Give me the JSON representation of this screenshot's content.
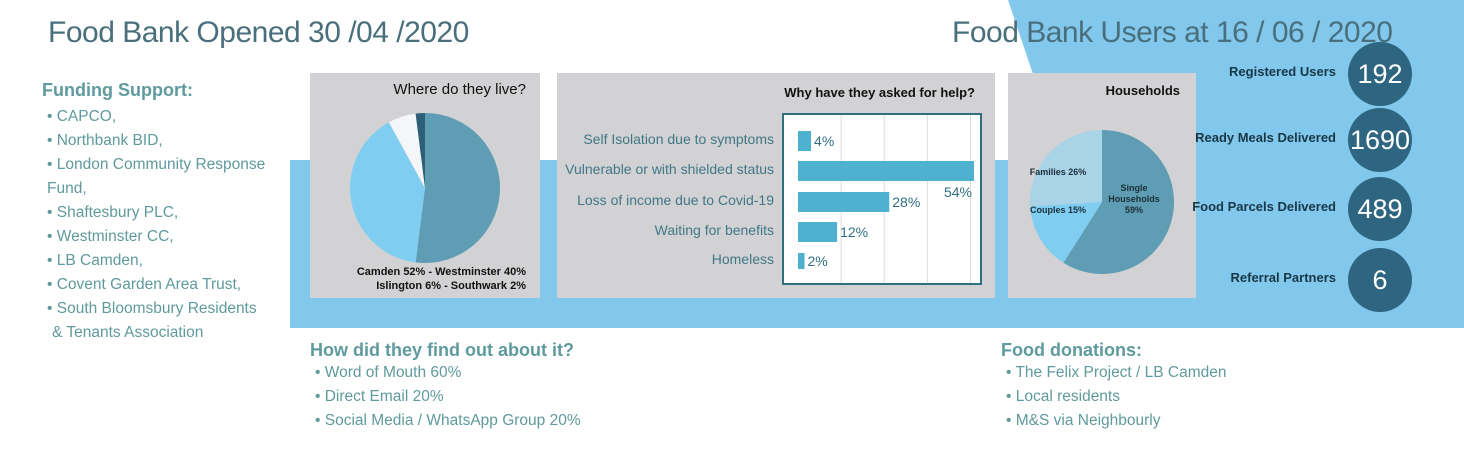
{
  "header": {
    "left_title": "Food Bank Opened 30 /04 /2020",
    "right_title": "Food Bank Users at 16 / 06 / 2020"
  },
  "funding": {
    "heading": "Funding Support:",
    "items": [
      "CAPCO,",
      "Northbank BID,",
      "London Community Response Fund,",
      "Shaftesbury PLC,",
      "Westminster CC,",
      "LB Camden,",
      "Covent Garden Area Trust,",
      "South Bloomsbury Residents"
    ],
    "continuation": "& Tenants Association"
  },
  "find_out": {
    "heading": "How did they find out about it?",
    "items": [
      "Word of Mouth 60%",
      "Direct Email 20%",
      "Social Media / WhatsApp Group 20%"
    ]
  },
  "donations": {
    "heading": "Food donations:",
    "items": [
      "The Felix Project / LB Camden",
      "Local residents",
      "M&S via Neighbourly"
    ]
  },
  "stats": [
    {
      "label": "Registered Users",
      "value": "192"
    },
    {
      "label": "Ready Meals Delivered",
      "value": "1690"
    },
    {
      "label": "Food Parcels Delivered",
      "value": "489"
    },
    {
      "label": "Referral Partners",
      "value": "6"
    }
  ],
  "colors": {
    "band": "#82c8ec",
    "panel": "#d2d2d4",
    "pie_dark": "#5e9db4",
    "pie_light": "#7fcdf0",
    "pie_white": "#f4f6f8",
    "pie_navy": "#2e5f78",
    "bar": "#4eb1cf",
    "stat_circle": "#2e6580",
    "text_teal": "#5f9a9d"
  },
  "chart_data": [
    {
      "type": "pie",
      "title": "Where do they live?",
      "caption_lines": [
        "Camden 52% - Westminster 40%",
        "Islington 6% - Southwark 2%"
      ],
      "labels": [
        "Camden",
        "Westminster",
        "Islington",
        "Southwark"
      ],
      "values": [
        52,
        40,
        6,
        2
      ]
    },
    {
      "type": "bar",
      "orientation": "horizontal",
      "title": "Why have they asked for help?",
      "categories": [
        "Self Isolation due to symptoms",
        "Vulnerable or with shielded status",
        "Loss of income due to Covid-19",
        "Waiting for benefits",
        "Homeless"
      ],
      "values": [
        4,
        54,
        28,
        12,
        2
      ],
      "value_labels": [
        "4%",
        "54%",
        "28%",
        "12%",
        "2%"
      ],
      "xlim": [
        0,
        54
      ],
      "grid": true
    },
    {
      "type": "pie",
      "title": "Households",
      "labels": [
        "Single Households",
        "Couples",
        "Families"
      ],
      "slice_labels": [
        "Single\nHouseholds\n59%",
        "Couples 15%",
        "Families 26%"
      ],
      "values": [
        59,
        15,
        26
      ]
    }
  ]
}
